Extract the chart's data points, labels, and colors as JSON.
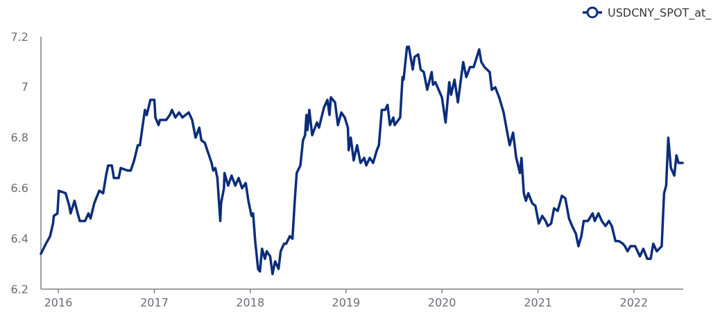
{
  "chart_data": {
    "type": "line",
    "legend": "top right",
    "grid": false,
    "xlim": [
      "2015-10-27",
      "2022-07-08"
    ],
    "xticks": [
      "2016",
      "2017",
      "2018",
      "2019",
      "2020",
      "2021",
      "2022"
    ],
    "ylim": [
      6.2,
      7.2
    ],
    "yticks": [
      6.2,
      6.4,
      6.6,
      6.8,
      7,
      7.2
    ],
    "series": [
      {
        "name": "USDCNY_SPOT_at_",
        "color": "#0a2d7a",
        "x": [
          "2015-10-27",
          "2015-11-15",
          "2015-12-01",
          "2015-12-12",
          "2015-12-15",
          "2015-12-29",
          "2016-01-03",
          "2016-01-29",
          "2016-02-12",
          "2016-02-17",
          "2016-03-03",
          "2016-03-15",
          "2016-03-23",
          "2016-04-12",
          "2016-04-25",
          "2016-05-03",
          "2016-05-17",
          "2016-06-05",
          "2016-06-20",
          "2016-07-01",
          "2016-07-09",
          "2016-07-23",
          "2016-07-31",
          "2016-08-18",
          "2016-08-26",
          "2016-09-20",
          "2016-10-03",
          "2016-10-16",
          "2016-10-30",
          "2016-11-07",
          "2016-11-15",
          "2016-11-26",
          "2016-12-03",
          "2016-12-17",
          "2017-01-01",
          "2017-01-05",
          "2017-01-17",
          "2017-01-22",
          "2017-02-15",
          "2017-03-01",
          "2017-03-09",
          "2017-03-22",
          "2017-04-05",
          "2017-04-18",
          "2017-05-12",
          "2017-05-25",
          "2017-06-07",
          "2017-06-21",
          "2017-06-29",
          "2017-07-12",
          "2017-07-25",
          "2017-08-07",
          "2017-08-13",
          "2017-08-21",
          "2017-08-29",
          "2017-09-09",
          "2017-09-12",
          "2017-09-23",
          "2017-09-25",
          "2017-10-09",
          "2017-10-22",
          "2017-11-05",
          "2017-11-18",
          "2017-12-01",
          "2017-12-15",
          "2017-12-25",
          "2018-01-06",
          "2018-01-12",
          "2018-01-20",
          "2018-01-31",
          "2018-02-07",
          "2018-02-15",
          "2018-02-26",
          "2018-03-05",
          "2018-03-18",
          "2018-03-27",
          "2018-04-06",
          "2018-04-19",
          "2018-04-27",
          "2018-05-10",
          "2018-05-18",
          "2018-06-01",
          "2018-06-11",
          "2018-06-19",
          "2018-06-27",
          "2018-07-11",
          "2018-07-21",
          "2018-07-29",
          "2018-08-03",
          "2018-08-07",
          "2018-08-14",
          "2018-08-25",
          "2018-09-12",
          "2018-09-20",
          "2018-10-09",
          "2018-10-22",
          "2018-10-30",
          "2018-11-04",
          "2018-11-20",
          "2018-12-01",
          "2018-12-14",
          "2018-12-27",
          "2019-01-08",
          "2019-01-11",
          "2019-01-19",
          "2019-01-30",
          "2019-02-12",
          "2019-02-25",
          "2019-03-11",
          "2019-03-19",
          "2019-04-01",
          "2019-04-14",
          "2019-04-28",
          "2019-05-06",
          "2019-05-17",
          "2019-05-30",
          "2019-06-08",
          "2019-06-17",
          "2019-06-30",
          "2019-07-05",
          "2019-07-26",
          "2019-08-04",
          "2019-08-08",
          "2019-08-21",
          "2019-08-28",
          "2019-09-12",
          "2019-09-19",
          "2019-10-03",
          "2019-10-12",
          "2019-10-24",
          "2019-11-06",
          "2019-11-23",
          "2019-11-28",
          "2019-12-07",
          "2020-01-01",
          "2020-01-15",
          "2020-01-29",
          "2020-02-05",
          "2020-02-18",
          "2020-03-02",
          "2020-03-22",
          "2020-04-03",
          "2020-04-17",
          "2020-05-01",
          "2020-05-22",
          "2020-05-30",
          "2020-06-11",
          "2020-07-01",
          "2020-07-09",
          "2020-07-22",
          "2020-08-06",
          "2020-08-23",
          "2020-09-06",
          "2020-09-15",
          "2020-09-28",
          "2020-10-10",
          "2020-10-15",
          "2020-10-24",
          "2020-10-30",
          "2020-11-08",
          "2020-11-16",
          "2020-11-25",
          "2020-12-10",
          "2020-12-22",
          "2021-01-04",
          "2021-01-17",
          "2021-01-30",
          "2021-02-07",
          "2021-02-20",
          "2021-03-03",
          "2021-03-17",
          "2021-04-02",
          "2021-04-15",
          "2021-04-29",
          "2021-05-11",
          "2021-05-25",
          "2021-06-04",
          "2021-06-15",
          "2021-06-24",
          "2021-07-10",
          "2021-07-28",
          "2021-08-05",
          "2021-08-19",
          "2021-09-01",
          "2021-09-15",
          "2021-09-28",
          "2021-10-09",
          "2021-10-23",
          "2021-11-06",
          "2021-11-20",
          "2021-11-28",
          "2021-12-08",
          "2021-12-19",
          "2022-01-06",
          "2022-01-24",
          "2022-02-06",
          "2022-02-21",
          "2022-03-06",
          "2022-03-16",
          "2022-03-29",
          "2022-04-17",
          "2022-04-26",
          "2022-05-04",
          "2022-05-12",
          "2022-05-22",
          "2022-06-04",
          "2022-06-12",
          "2022-06-20",
          "2022-07-06"
        ],
        "values": [
          6.34,
          6.38,
          6.41,
          6.46,
          6.49,
          6.5,
          6.59,
          6.58,
          6.53,
          6.5,
          6.55,
          6.5,
          6.47,
          6.47,
          6.5,
          6.48,
          6.54,
          6.59,
          6.58,
          6.65,
          6.69,
          6.69,
          6.64,
          6.64,
          6.68,
          6.67,
          6.67,
          6.71,
          6.77,
          6.77,
          6.83,
          6.91,
          6.89,
          6.95,
          6.95,
          6.88,
          6.85,
          6.87,
          6.87,
          6.89,
          6.91,
          6.88,
          6.9,
          6.88,
          6.9,
          6.87,
          6.8,
          6.84,
          6.79,
          6.78,
          6.74,
          6.7,
          6.67,
          6.68,
          6.64,
          6.47,
          6.54,
          6.6,
          6.66,
          6.61,
          6.65,
          6.61,
          6.64,
          6.6,
          6.62,
          6.55,
          6.49,
          6.5,
          6.39,
          6.28,
          6.27,
          6.36,
          6.32,
          6.35,
          6.33,
          6.26,
          6.31,
          6.28,
          6.35,
          6.38,
          6.38,
          6.41,
          6.4,
          6.54,
          6.66,
          6.69,
          6.79,
          6.81,
          6.89,
          6.83,
          6.91,
          6.81,
          6.86,
          6.84,
          6.92,
          6.95,
          6.89,
          6.96,
          6.94,
          6.85,
          6.9,
          6.88,
          6.84,
          6.75,
          6.8,
          6.71,
          6.77,
          6.7,
          6.72,
          6.69,
          6.72,
          6.7,
          6.75,
          6.77,
          6.91,
          6.91,
          6.93,
          6.85,
          6.88,
          6.85,
          6.88,
          7.04,
          7.03,
          7.16,
          7.16,
          7.07,
          7.12,
          7.13,
          7.07,
          7.06,
          6.99,
          7.06,
          7.01,
          7.02,
          6.96,
          6.86,
          7.02,
          6.97,
          7.03,
          6.94,
          7.1,
          7.04,
          7.08,
          7.08,
          7.15,
          7.1,
          7.08,
          7.06,
          6.99,
          7,
          6.96,
          6.9,
          6.82,
          6.77,
          6.82,
          6.72,
          6.7,
          6.66,
          6.72,
          6.58,
          6.55,
          6.58,
          6.54,
          6.53,
          6.46,
          6.49,
          6.47,
          6.45,
          6.46,
          6.52,
          6.51,
          6.57,
          6.56,
          6.48,
          6.45,
          6.42,
          6.37,
          6.41,
          6.47,
          6.47,
          6.5,
          6.47,
          6.5,
          6.47,
          6.45,
          6.47,
          6.45,
          6.39,
          6.39,
          6.38,
          6.37,
          6.35,
          6.37,
          6.37,
          6.33,
          6.36,
          6.32,
          6.32,
          6.38,
          6.35,
          6.37,
          6.58,
          6.61,
          6.8,
          6.68,
          6.65,
          6.73,
          6.7,
          6.7
        ]
      }
    ]
  }
}
